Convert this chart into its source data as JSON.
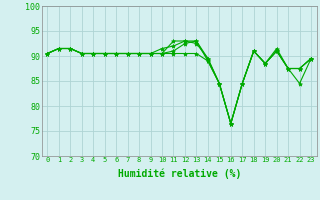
{
  "xlabel": "Humidité relative (%)",
  "bg_color": "#d4f0f0",
  "grid_color": "#aed4d4",
  "line_color": "#00aa00",
  "marker": "*",
  "ylim": [
    70,
    100
  ],
  "yticks": [
    70,
    75,
    80,
    85,
    90,
    95,
    100
  ],
  "xlim": [
    -0.5,
    23.5
  ],
  "xticks": [
    0,
    1,
    2,
    3,
    4,
    5,
    6,
    7,
    8,
    9,
    10,
    11,
    12,
    13,
    14,
    15,
    16,
    17,
    18,
    19,
    20,
    21,
    22,
    23
  ],
  "series": [
    [
      90.5,
      91.5,
      91.5,
      90.5,
      90.5,
      90.5,
      90.5,
      90.5,
      90.5,
      90.5,
      90.5,
      91.0,
      92.5,
      93.0,
      89.5,
      84.5,
      76.5,
      84.5,
      91.0,
      88.5,
      91.0,
      87.5,
      84.5,
      89.5
    ],
    [
      90.5,
      91.5,
      91.5,
      90.5,
      90.5,
      90.5,
      90.5,
      90.5,
      90.5,
      90.5,
      90.5,
      93.0,
      93.0,
      92.5,
      89.5,
      84.5,
      76.5,
      84.5,
      91.0,
      88.5,
      91.5,
      87.5,
      87.5,
      89.5
    ],
    [
      90.5,
      91.5,
      91.5,
      90.5,
      90.5,
      90.5,
      90.5,
      90.5,
      90.5,
      90.5,
      91.5,
      92.0,
      93.0,
      93.0,
      89.0,
      84.5,
      76.5,
      84.5,
      91.0,
      88.5,
      91.0,
      87.5,
      87.5,
      89.5
    ],
    [
      90.5,
      91.5,
      91.5,
      90.5,
      90.5,
      90.5,
      90.5,
      90.5,
      90.5,
      90.5,
      90.5,
      90.5,
      90.5,
      90.5,
      89.0,
      84.5,
      76.5,
      84.5,
      91.0,
      88.5,
      91.0,
      87.5,
      87.5,
      89.5
    ]
  ],
  "markersize": 3,
  "linewidth": 0.8,
  "xlabel_fontsize": 7,
  "tick_fontsize": 5,
  "ytick_fontsize": 6
}
